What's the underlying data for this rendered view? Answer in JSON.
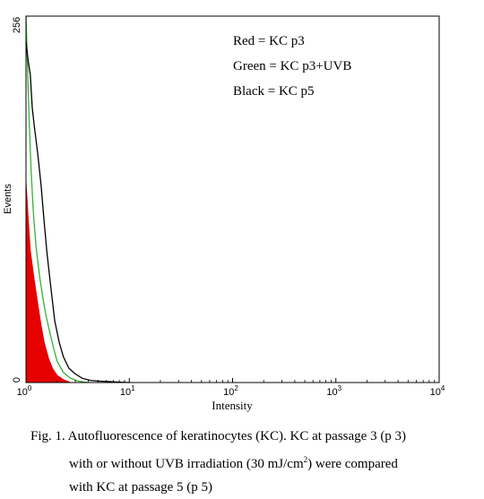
{
  "chart_data": {
    "type": "area",
    "title": "",
    "xlabel": "Intensity",
    "ylabel": "Events",
    "xscale": "log",
    "xlim": [
      1,
      10000
    ],
    "ylim": [
      0,
      256
    ],
    "x_ticks": [
      {
        "value": 1,
        "base": "10",
        "exp": "0"
      },
      {
        "value": 10,
        "base": "10",
        "exp": "1"
      },
      {
        "value": 100,
        "base": "10",
        "exp": "2"
      },
      {
        "value": 1000,
        "base": "10",
        "exp": "3"
      },
      {
        "value": 10000,
        "base": "10",
        "exp": "4"
      }
    ],
    "y_ticks": [
      {
        "value": 0,
        "label": "0"
      },
      {
        "value": 256,
        "label": "256"
      }
    ],
    "legend": [
      {
        "text": "Red = KC p3",
        "color": "#e60000"
      },
      {
        "text": "Green = KC p3+UVB",
        "color": "#33b333"
      },
      {
        "text": "Black = KC p5",
        "color": "#000000"
      }
    ],
    "legend_position": "top-right",
    "series": [
      {
        "color": "#e60000",
        "style": "filled",
        "x": [
          1.0,
          1.05,
          1.1,
          1.2,
          1.3,
          1.4,
          1.5,
          1.65,
          1.8,
          2.0,
          2.3,
          2.7
        ],
        "y": [
          140,
          115,
          92,
          72,
          55,
          40,
          28,
          17,
          10,
          5,
          2,
          0
        ]
      },
      {
        "color": "#33b333",
        "style": "line",
        "x": [
          1.0,
          1.03,
          1.07,
          1.12,
          1.18,
          1.25,
          1.35,
          1.45,
          1.55,
          1.7,
          1.85,
          2.0,
          2.3,
          2.7,
          3.2,
          4.0
        ],
        "y": [
          256,
          225,
          185,
          148,
          118,
          95,
          75,
          60,
          48,
          35,
          24,
          15,
          7,
          3,
          1,
          0
        ]
      },
      {
        "color": "#000000",
        "style": "line",
        "x": [
          1.0,
          1.05,
          1.1,
          1.15,
          1.2,
          1.3,
          1.4,
          1.5,
          1.6,
          1.75,
          1.9,
          2.1,
          2.3,
          2.6,
          3.0,
          3.5,
          4.2,
          5.0,
          7.0,
          10.0
        ],
        "y": [
          238,
          225,
          215,
          192,
          180,
          160,
          138,
          112,
          90,
          65,
          43,
          28,
          18,
          10,
          6,
          3,
          1.5,
          1,
          0.5,
          0
        ]
      }
    ]
  },
  "caption": {
    "line1": "Fig. 1. Autofluorescence of keratinocytes (KC).  KC at passage 3 (p 3)",
    "line2_pre": "with or without UVB irradiation (30 mJ/cm",
    "line2_sup": "2",
    "line2_post": ") were compared",
    "line3": "with KC at passage 5 (p 5)"
  }
}
